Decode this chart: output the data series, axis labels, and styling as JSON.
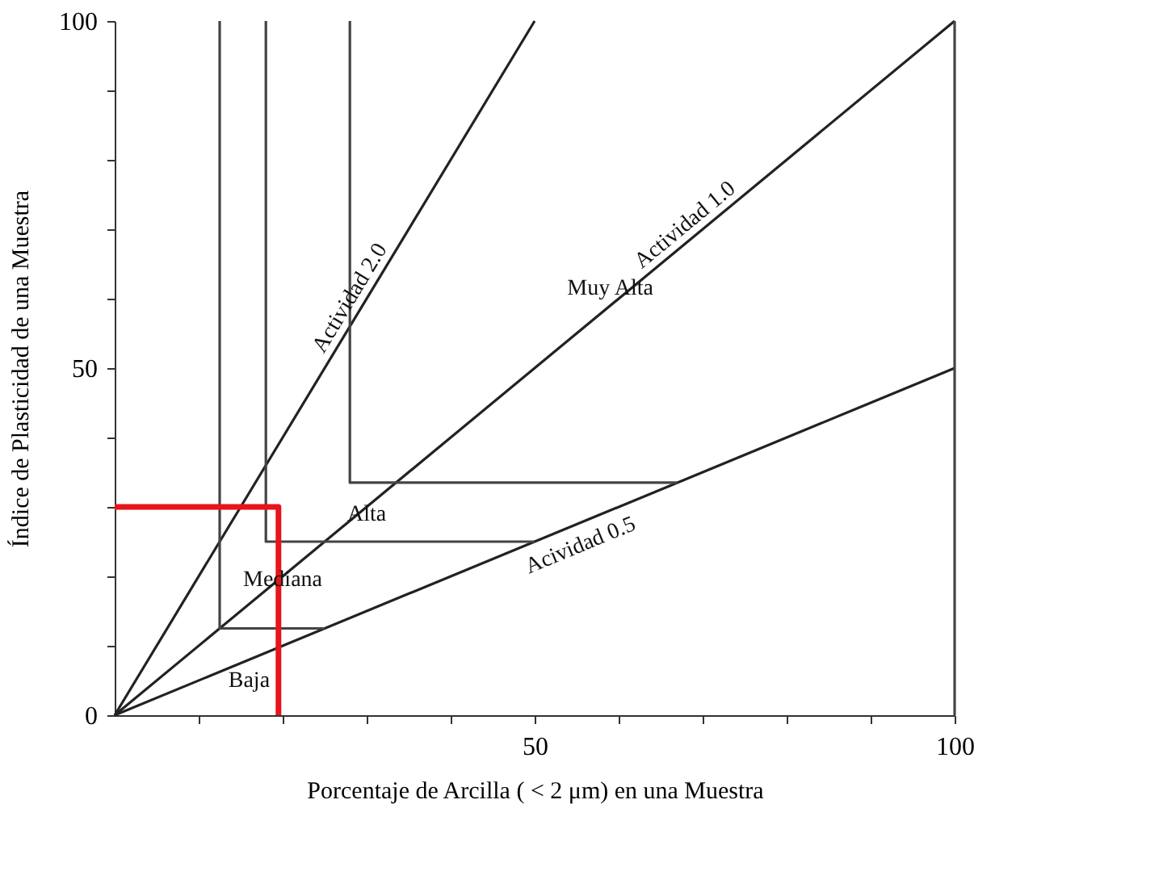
{
  "chart_data": {
    "type": "line",
    "xlabel": "Porcentaje de Arcilla ( < 2 μm) en una Muestra",
    "ylabel": "Índice de Plasticidad de una Muestra",
    "series": [
      {
        "color": "#222222",
        "x": [
          0,
          50
        ],
        "values": [
          0,
          100
        ]
      },
      {
        "color": "#222222",
        "x": [
          0,
          100
        ],
        "values": [
          0,
          100
        ]
      },
      {
        "color": "#222222",
        "x": [
          0,
          100
        ],
        "values": [
          0,
          50
        ]
      },
      {
        "color": "#444444",
        "x": [
          12.5,
          12.5,
          25
        ],
        "values": [
          100,
          12.5,
          12.5
        ]
      },
      {
        "color": "#444444",
        "x": [
          18,
          18,
          50
        ],
        "values": [
          100,
          25,
          25
        ]
      },
      {
        "color": "#444444",
        "x": [
          28,
          28,
          67
        ],
        "values": [
          100,
          33.5,
          33.5
        ]
      },
      {
        "color": "#e8141b",
        "x": [
          0,
          19.5,
          19.5
        ],
        "values": [
          30,
          30,
          0
        ]
      }
    ],
    "annotations": [
      "Baja",
      "Mediana",
      "Alta",
      "Muy Alta",
      {
        "text": "Actividad 2.0",
        "x": 29.5,
        "y": 59
      },
      {
        "text": "Actividad 1.0",
        "x": 69,
        "y": 69
      },
      {
        "text": "Acividad 0.5",
        "x": 54.5,
        "y": 27.25
      }
    ],
    "ref_lines": [
      {
        "axis": "x",
        "value": 100,
        "color": "#444444"
      }
    ],
    "xlim": [
      0,
      100
    ],
    "ylim": [
      0,
      100
    ],
    "xticks": [
      {
        "value": 10,
        "label": null
      },
      {
        "value": 20,
        "label": null
      },
      {
        "value": 30,
        "label": null
      },
      {
        "value": 40,
        "label": null
      },
      50,
      {
        "value": 60,
        "label": null
      },
      {
        "value": 70,
        "label": null
      },
      {
        "value": 80,
        "label": null
      },
      {
        "value": 90,
        "label": null
      },
      100
    ],
    "yticks": [
      0,
      {
        "value": 10,
        "label": null
      },
      {
        "value": 20,
        "label": null
      },
      {
        "value": 30,
        "label": null
      },
      {
        "value": 40,
        "label": null
      },
      50,
      {
        "value": 60,
        "label": null
      },
      {
        "value": 70,
        "label": null
      },
      {
        "value": 80,
        "label": null
      },
      {
        "value": 90,
        "label": null
      },
      100
    ],
    "grid": false,
    "marker": "none",
    "line_style": "solid"
  }
}
